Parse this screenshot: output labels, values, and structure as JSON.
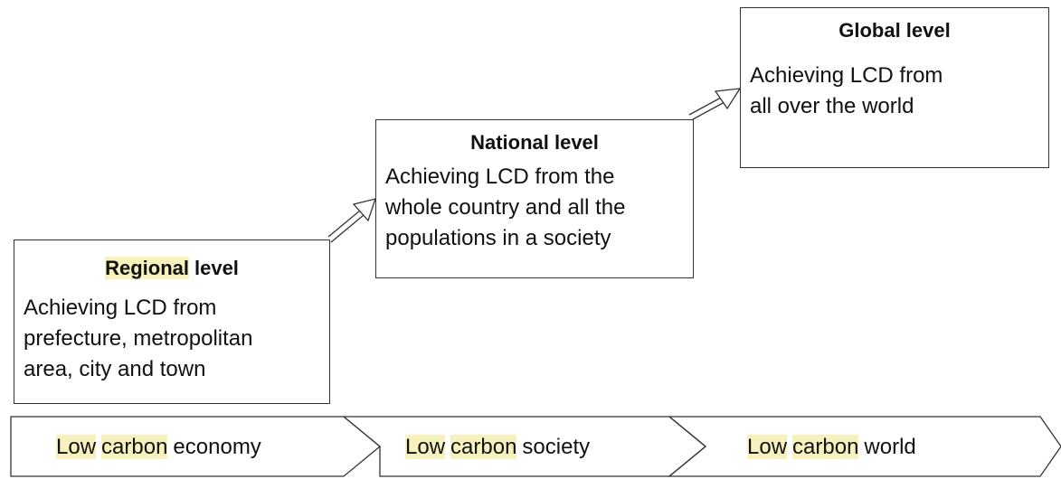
{
  "levels": [
    {
      "title": [
        {
          "text": "Regional",
          "highlight": true
        },
        {
          "text": "level"
        }
      ],
      "description": [
        "Achieving LCD from",
        "prefecture, metropolitan",
        "area, city and town"
      ]
    },
    {
      "title": [
        {
          "text": "National level"
        }
      ],
      "description": [
        "Achieving LCD from the",
        "whole country and all the",
        "populations in a society"
      ]
    },
    {
      "title": [
        {
          "text": "Global level"
        }
      ],
      "description": [
        "Achieving LCD from",
        "all over the world"
      ]
    }
  ],
  "stages": [
    {
      "parts": [
        {
          "text": "Low",
          "highlight": true
        },
        {
          "text": "carbon",
          "highlight": true
        },
        {
          "text": "economy"
        }
      ]
    },
    {
      "parts": [
        {
          "text": "Low",
          "highlight": true
        },
        {
          "text": "carbon",
          "highlight": true
        },
        {
          "text": "society"
        }
      ]
    },
    {
      "parts": [
        {
          "text": "Low",
          "highlight": true
        },
        {
          "text": "carbon",
          "highlight": true
        },
        {
          "text": "world"
        }
      ]
    }
  ]
}
